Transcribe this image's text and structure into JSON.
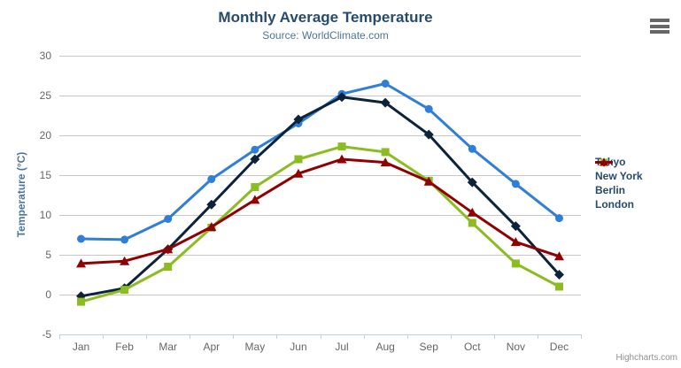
{
  "chart": {
    "title": "Monthly Average Temperature",
    "subtitle": "Source: WorldClimate.com",
    "y_axis_title": "Temperature (°C)",
    "credits": "Highcharts.com",
    "export_icon": "hamburger-menu-icon"
  },
  "chart_data": {
    "type": "line",
    "title": "Monthly Average Temperature",
    "subtitle": "Source: WorldClimate.com",
    "categories": [
      "Jan",
      "Feb",
      "Mar",
      "Apr",
      "May",
      "Jun",
      "Jul",
      "Aug",
      "Sep",
      "Oct",
      "Nov",
      "Dec"
    ],
    "series": [
      {
        "name": "Tokyo",
        "color": "#2f7ed8",
        "marker": "circle",
        "values": [
          7.0,
          6.9,
          9.5,
          14.5,
          18.2,
          21.5,
          25.2,
          26.5,
          23.3,
          18.3,
          13.9,
          9.6
        ]
      },
      {
        "name": "New York",
        "color": "#0d233a",
        "marker": "diamond",
        "values": [
          -0.2,
          0.8,
          5.7,
          11.3,
          17.0,
          22.0,
          24.8,
          24.1,
          20.1,
          14.1,
          8.6,
          2.5
        ]
      },
      {
        "name": "Berlin",
        "color": "#8bbc21",
        "marker": "square",
        "values": [
          -0.9,
          0.6,
          3.5,
          8.4,
          13.5,
          17.0,
          18.6,
          17.9,
          14.3,
          9.0,
          3.9,
          1.0
        ]
      },
      {
        "name": "London",
        "color": "#910000",
        "marker": "triangle",
        "values": [
          3.9,
          4.2,
          5.7,
          8.5,
          11.9,
          15.2,
          17.0,
          16.6,
          14.2,
          10.3,
          6.6,
          4.8
        ]
      }
    ],
    "xlabel": "",
    "ylabel": "Temperature (°C)",
    "ylim": [
      -5,
      30
    ],
    "yticks": [
      -5,
      0,
      5,
      10,
      15,
      20,
      25,
      30
    ],
    "grid": true,
    "legend_position": "right",
    "colors": {
      "title": "#274b6d",
      "subtitle": "#4d759e",
      "yaxis_title": "#4d759e",
      "tick_label": "#666666",
      "grid_line": "#c8c8c8",
      "axis_line": "#c0d0e0",
      "legend_text": "#274b6d",
      "credits": "#909090",
      "menu_icon": "#666666",
      "background": "#ffffff"
    }
  }
}
